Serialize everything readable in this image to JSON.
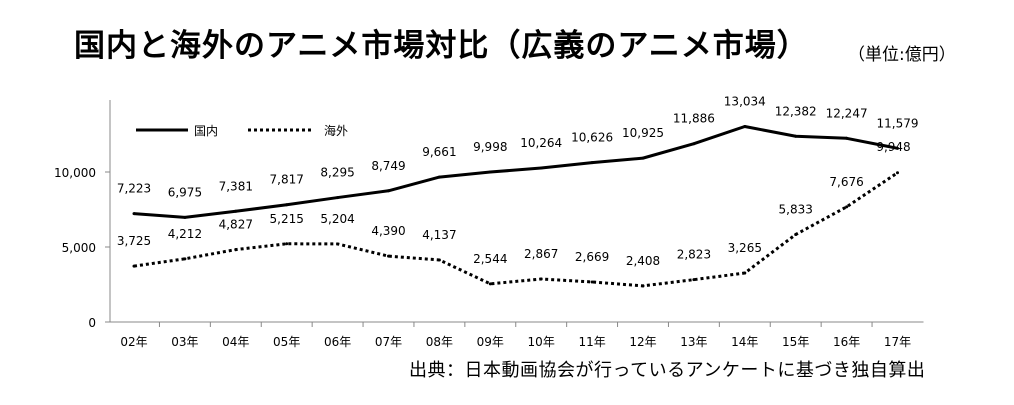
{
  "title": "国内と海外のアニメ市場対比（広義のアニメ市場）",
  "unit": "（単位:億円）",
  "source": "出典：日本動画協会が行っているアンケートに基づき独自算出",
  "chart_data": {
    "type": "line",
    "categories": [
      "02年",
      "03年",
      "04年",
      "05年",
      "06年",
      "07年",
      "08年",
      "09年",
      "10年",
      "11年",
      "12年",
      "13年",
      "14年",
      "15年",
      "16年",
      "17年"
    ],
    "ylim": [
      0,
      15000
    ],
    "yticks": [
      0,
      5000,
      10000
    ],
    "ytick_labels": [
      "0",
      "5,000",
      "10,000"
    ],
    "grid": false,
    "legend_position": "top-left",
    "series": [
      {
        "name": "国内",
        "style": "solid",
        "values": [
          7223,
          6975,
          7381,
          7817,
          8295,
          8749,
          9661,
          9998,
          10264,
          10626,
          10925,
          11886,
          13034,
          12382,
          12247,
          11579
        ],
        "labels": [
          "7,223",
          "6,975",
          "7,381",
          "7,817",
          "8,295",
          "8,749",
          "9,661",
          "9,998",
          "10,264",
          "10,626",
          "10,925",
          "11,886",
          "13,034",
          "12,382",
          "12,247",
          "11,579"
        ]
      },
      {
        "name": "海外",
        "style": "dotted",
        "values": [
          3725,
          4212,
          4827,
          5215,
          5204,
          4390,
          4137,
          2544,
          2867,
          2669,
          2408,
          2823,
          3265,
          5833,
          7676,
          9948
        ],
        "labels": [
          "3,725",
          "4,212",
          "4,827",
          "5,215",
          "5,204",
          "4,390",
          "4,137",
          "2,544",
          "2,867",
          "2,669",
          "2,408",
          "2,823",
          "3,265",
          "5,833",
          "7,676",
          "9,948"
        ]
      }
    ]
  }
}
